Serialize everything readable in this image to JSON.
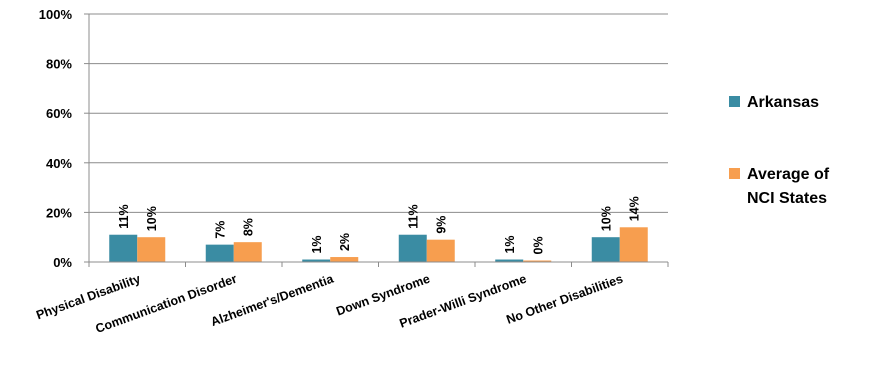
{
  "chart_data": {
    "type": "bar",
    "title": "",
    "xlabel": "",
    "ylabel": "",
    "ylim": [
      0,
      100
    ],
    "y_ticks": [
      "0%",
      "20%",
      "40%",
      "60%",
      "80%",
      "100%"
    ],
    "grid": true,
    "legend_position": "right",
    "categories": [
      "Physical Disability",
      "Communication Disorder",
      "Alzheimer's/Dementia",
      "Down Syndrome",
      "Prader-Willi Syndrome",
      "No Other Disabilities"
    ],
    "series": [
      {
        "name": "Arkansas",
        "color": "#3A8CA3",
        "values": [
          11,
          7,
          1,
          11,
          1,
          10
        ],
        "labels": [
          "11%",
          "7%",
          "1%",
          "11%",
          "1%",
          "10%"
        ]
      },
      {
        "name": "Average of NCI States",
        "color": "#F79E4F",
        "values": [
          10,
          8,
          2,
          9,
          0,
          14
        ],
        "labels": [
          "10%",
          "8%",
          "2%",
          "9%",
          "0%",
          "14%"
        ]
      }
    ]
  }
}
